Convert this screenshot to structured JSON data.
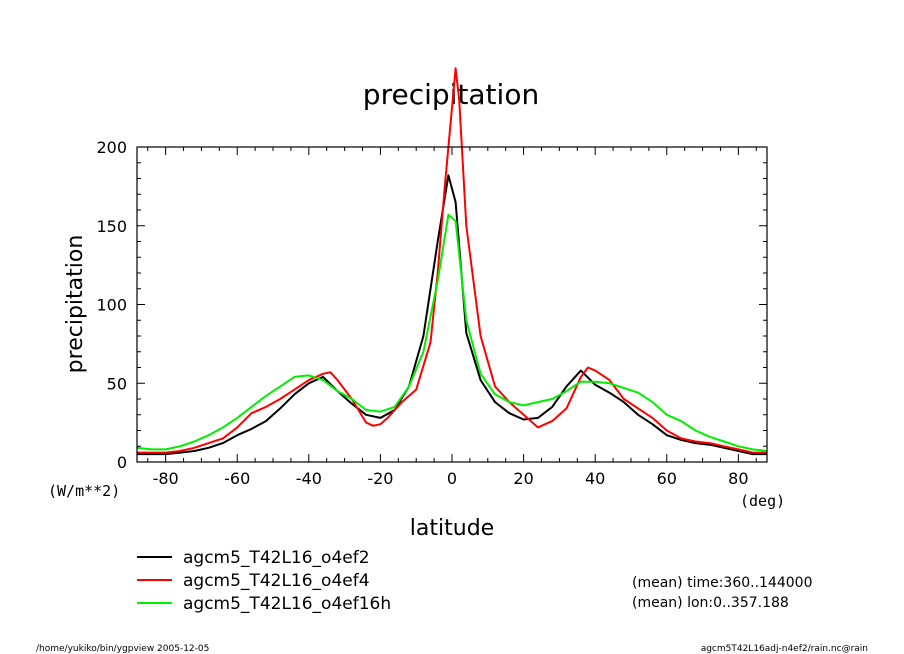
{
  "chart_data": {
    "type": "line",
    "title": "precipitation",
    "xlabel": "latitude",
    "ylabel": "precipitation",
    "y_unit": "(W/m**2)",
    "x_unit": "(deg)",
    "xlim": [
      -88,
      88
    ],
    "ylim": [
      0,
      200
    ],
    "xticks": [
      -80,
      -60,
      -40,
      -20,
      0,
      20,
      40,
      60,
      80
    ],
    "yticks": [
      0,
      50,
      100,
      150,
      200
    ],
    "grid": false,
    "legend_position": "bottom-left",
    "series": [
      {
        "name": "agcm5_T42L16_o4ef2",
        "color": "#000000",
        "x": [
          -88,
          -84,
          -80,
          -76,
          -72,
          -68,
          -64,
          -60,
          -56,
          -52,
          -48,
          -44,
          -40,
          -36,
          -32,
          -28,
          -24,
          -20,
          -16,
          -12,
          -8,
          -4,
          -1,
          1,
          4,
          8,
          12,
          16,
          20,
          24,
          28,
          32,
          36,
          40,
          44,
          48,
          52,
          56,
          60,
          64,
          68,
          72,
          76,
          80,
          84,
          88
        ],
        "values": [
          5,
          5,
          5,
          6,
          7,
          9,
          12,
          17,
          21,
          26,
          34,
          43,
          50,
          54,
          45,
          37,
          30,
          28,
          33,
          48,
          80,
          140,
          182,
          165,
          82,
          52,
          38,
          31,
          27,
          28,
          35,
          48,
          58,
          49,
          44,
          38,
          30,
          24,
          17,
          14,
          12,
          11,
          9,
          7,
          5,
          5
        ]
      },
      {
        "name": "agcm5_T42L16_o4ef4",
        "color": "#ff0000",
        "x": [
          -88,
          -84,
          -80,
          -76,
          -72,
          -68,
          -64,
          -60,
          -56,
          -52,
          -48,
          -44,
          -40,
          -36,
          -34,
          -32,
          -28,
          -24,
          -22,
          -20,
          -18,
          -14,
          -10,
          -6,
          -4,
          -2,
          0,
          1,
          2,
          4,
          8,
          12,
          16,
          20,
          24,
          28,
          32,
          36,
          38,
          40,
          44,
          48,
          52,
          56,
          60,
          64,
          68,
          72,
          76,
          80,
          84,
          88
        ],
        "values": [
          6,
          6,
          6,
          7,
          9,
          12,
          15,
          22,
          31,
          35,
          40,
          46,
          52,
          56,
          57,
          52,
          40,
          25,
          23,
          24,
          28,
          38,
          46,
          76,
          120,
          175,
          225,
          250,
          230,
          150,
          80,
          48,
          38,
          30,
          22,
          26,
          34,
          54,
          60,
          58,
          52,
          40,
          34,
          28,
          20,
          15,
          13,
          12,
          10,
          8,
          6,
          6
        ]
      },
      {
        "name": "agcm5_T42L16_o4ef16h",
        "color": "#00ee00",
        "x": [
          -88,
          -84,
          -80,
          -76,
          -72,
          -68,
          -64,
          -60,
          -56,
          -52,
          -48,
          -44,
          -40,
          -36,
          -32,
          -28,
          -24,
          -20,
          -16,
          -12,
          -8,
          -4,
          -1,
          1,
          4,
          8,
          12,
          16,
          20,
          24,
          28,
          32,
          36,
          40,
          44,
          48,
          52,
          56,
          60,
          64,
          68,
          72,
          76,
          80,
          84,
          88
        ],
        "values": [
          9,
          8,
          8,
          10,
          13,
          17,
          22,
          28,
          35,
          42,
          48,
          54,
          55,
          52,
          45,
          40,
          33,
          32,
          35,
          48,
          70,
          115,
          157,
          153,
          90,
          56,
          43,
          38,
          36,
          38,
          40,
          45,
          51,
          51,
          50,
          47,
          44,
          38,
          30,
          26,
          20,
          16,
          13,
          10,
          8,
          7
        ]
      }
    ]
  },
  "annotations": {
    "mean_time": "(mean) time:360..144000",
    "mean_lon": "(mean) lon:0..357.188"
  },
  "footer": {
    "left": "/home/yukiko/bin/ygpview  2005-12-05",
    "right": "agcm5T42L16adj-n4ef2/rain.nc@rain"
  }
}
